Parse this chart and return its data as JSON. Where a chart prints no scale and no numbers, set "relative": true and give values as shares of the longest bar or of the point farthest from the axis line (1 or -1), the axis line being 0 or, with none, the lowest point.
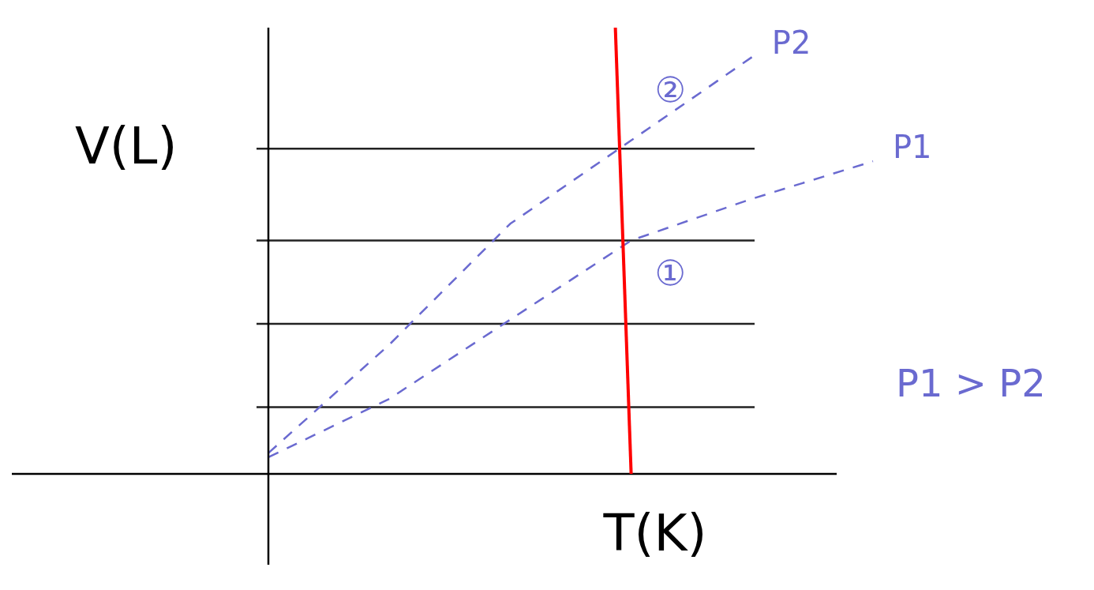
{
  "chart_data": {
    "type": "line",
    "relative": true,
    "xlabel": "T(K)",
    "ylabel": "V(L)",
    "categories": [
      null,
      null,
      null,
      null,
      null,
      null
    ],
    "series": [
      {
        "name": "P2",
        "color": "#6a6ad0",
        "values": [
          0.05,
          0.31,
          0.6,
          0.8,
          1,
          null
        ]
      },
      {
        "name": "P1",
        "color": "#6a6ad0",
        "values": [
          0.04,
          0.18,
          0.37,
          0.56,
          0.66,
          0.75
        ]
      }
    ],
    "line_style": "dashed",
    "marker": "none",
    "legend": false,
    "ref_lines": [
      {
        "axis": "y",
        "value": 0.78,
        "color": "#222222"
      },
      {
        "axis": "y",
        "value": 0.56,
        "color": "#222222"
      },
      {
        "axis": "y",
        "value": 0.36,
        "color": "#222222"
      },
      {
        "axis": "y",
        "value": 0.16,
        "color": "#222222"
      }
    ],
    "annotations": [
      "②",
      "①",
      "P1 > P2"
    ]
  }
}
